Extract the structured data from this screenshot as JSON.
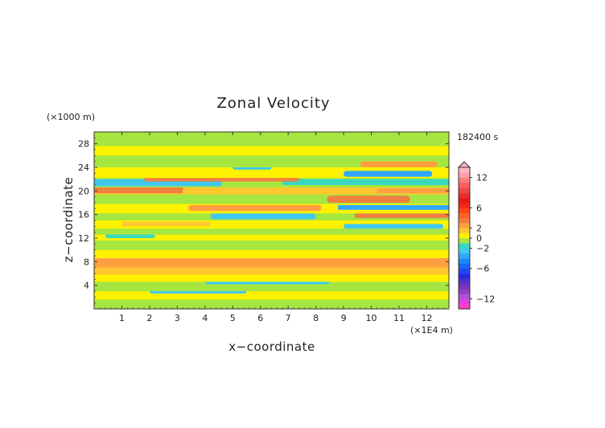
{
  "chart_data": {
    "type": "heatmap",
    "title": "Zonal Velocity",
    "xlabel": "x−coordinate",
    "ylabel": "z−coordinate",
    "x_unit": "(×1E4 m)",
    "y_unit": "(×1000 m)",
    "time_label": "182400 s",
    "xlim": [
      0,
      12.8
    ],
    "ylim": [
      0,
      30
    ],
    "x_ticks": [
      "1",
      "2",
      "3",
      "4",
      "5",
      "6",
      "7",
      "8",
      "9",
      "10",
      "11",
      "12"
    ],
    "y_ticks": [
      "4",
      "8",
      "12",
      "16",
      "20",
      "24",
      "28"
    ],
    "colorbar": {
      "range": [
        -14,
        14
      ],
      "tick_labels": [
        "12",
        "6",
        "2",
        "0",
        "−2",
        "−6",
        "−12"
      ],
      "tick_values": [
        12,
        6,
        2,
        0,
        -2,
        -6,
        -12
      ],
      "extend": "max",
      "levels": [
        {
          "from": -14,
          "to": -13,
          "color": "#ff40c8"
        },
        {
          "from": -13,
          "to": -12,
          "color": "#e040e0"
        },
        {
          "from": -12,
          "to": -11,
          "color": "#b050d8"
        },
        {
          "from": -11,
          "to": -10,
          "color": "#9040c0"
        },
        {
          "from": -10,
          "to": -9,
          "color": "#7a30b8"
        },
        {
          "from": -9,
          "to": -8,
          "color": "#5030c8"
        },
        {
          "from": -8,
          "to": -7,
          "color": "#2828e0"
        },
        {
          "from": -7,
          "to": -6,
          "color": "#2048f0"
        },
        {
          "from": -6,
          "to": -5,
          "color": "#1a66f5"
        },
        {
          "from": -5,
          "to": -4,
          "color": "#1e88ff"
        },
        {
          "from": -4,
          "to": -3,
          "color": "#30a8ff"
        },
        {
          "from": -3,
          "to": -2,
          "color": "#40c8f0"
        },
        {
          "from": -2,
          "to": -1,
          "color": "#38d8c0"
        },
        {
          "from": -1,
          "to": 0,
          "color": "#a6e640"
        },
        {
          "from": 0,
          "to": 1,
          "color": "#fff200"
        },
        {
          "from": 1,
          "to": 2,
          "color": "#ffc830"
        },
        {
          "from": 2,
          "to": 3,
          "color": "#ffa040"
        },
        {
          "from": 3,
          "to": 4,
          "color": "#f08040"
        },
        {
          "from": 4,
          "to": 5,
          "color": "#ff6020"
        },
        {
          "from": 5,
          "to": 6,
          "color": "#ff4418"
        },
        {
          "from": 6,
          "to": 7,
          "color": "#f02818"
        },
        {
          "from": 7,
          "to": 8,
          "color": "#e81a1a"
        },
        {
          "from": 8,
          "to": 9,
          "color": "#e83030"
        },
        {
          "from": 9,
          "to": 10,
          "color": "#f04848"
        },
        {
          "from": 10,
          "to": 11,
          "color": "#f86060"
        },
        {
          "from": 11,
          "to": 12,
          "color": "#fc7c80"
        },
        {
          "from": 12,
          "to": 13,
          "color": "#ffa0a8"
        },
        {
          "from": 13,
          "to": 14,
          "color": "#ffb8c0"
        }
      ]
    },
    "field_bands": [
      {
        "z": [
          0,
          1.6
        ],
        "x": [
          0,
          12.8
        ],
        "level": -1,
        "color": "#a6e640"
      },
      {
        "z": [
          1.6,
          3.0
        ],
        "x": [
          0,
          12.8
        ],
        "level": 0,
        "color": "#fff200"
      },
      {
        "z": [
          2.6,
          3.4
        ],
        "x": [
          2.0,
          5.5
        ],
        "level": -2,
        "color": "#40c8f0"
      },
      {
        "z": [
          3.0,
          4.6
        ],
        "x": [
          0,
          12.8
        ],
        "level": -1,
        "color": "#a6e640"
      },
      {
        "z": [
          4.2,
          5.2
        ],
        "x": [
          4.0,
          8.5
        ],
        "level": -2,
        "color": "#40c8f0"
      },
      {
        "z": [
          4.6,
          5.8
        ],
        "x": [
          0,
          12.8
        ],
        "level": 0,
        "color": "#fff200"
      },
      {
        "z": [
          5.8,
          7.0
        ],
        "x": [
          0,
          12.8
        ],
        "level": 1,
        "color": "#ffc830"
      },
      {
        "z": [
          7.0,
          8.6
        ],
        "x": [
          0,
          12.8
        ],
        "level": 2,
        "color": "#ffa040"
      },
      {
        "z": [
          8.6,
          10.0
        ],
        "x": [
          0,
          12.8
        ],
        "level": 0,
        "color": "#fff200"
      },
      {
        "z": [
          10.0,
          11.6
        ],
        "x": [
          0,
          12.8
        ],
        "level": -1,
        "color": "#a6e640"
      },
      {
        "z": [
          11.6,
          12.6
        ],
        "x": [
          0,
          12.8
        ],
        "level": 0,
        "color": "#fff200"
      },
      {
        "z": [
          12.0,
          12.8
        ],
        "x": [
          0.4,
          2.2
        ],
        "level": -2,
        "color": "#38d8c0"
      },
      {
        "z": [
          12.6,
          13.6
        ],
        "x": [
          0,
          12.8
        ],
        "level": -1,
        "color": "#a6e640"
      },
      {
        "z": [
          13.6,
          15.0
        ],
        "x": [
          0,
          12.8
        ],
        "level": 0,
        "color": "#fff200"
      },
      {
        "z": [
          14.0,
          14.8
        ],
        "x": [
          1.0,
          4.2
        ],
        "level": 1,
        "color": "#ffc830"
      },
      {
        "z": [
          13.6,
          14.4
        ],
        "x": [
          9.0,
          12.6
        ],
        "level": -2,
        "color": "#40c8f0"
      },
      {
        "z": [
          15.0,
          16.2
        ],
        "x": [
          0,
          12.8
        ],
        "level": -1,
        "color": "#a6e640"
      },
      {
        "z": [
          15.2,
          16.2
        ],
        "x": [
          4.2,
          8.0
        ],
        "level": -2,
        "color": "#40c8f0"
      },
      {
        "z": [
          15.4,
          16.4
        ],
        "x": [
          9.4,
          12.8
        ],
        "level": 3,
        "color": "#f08040"
      },
      {
        "z": [
          16.2,
          17.8
        ],
        "x": [
          0,
          12.8
        ],
        "level": 0,
        "color": "#fff200"
      },
      {
        "z": [
          16.6,
          17.6
        ],
        "x": [
          3.4,
          8.2
        ],
        "level": 2,
        "color": "#ffa040"
      },
      {
        "z": [
          16.8,
          17.6
        ],
        "x": [
          8.8,
          12.8
        ],
        "level": -3,
        "color": "#30a8ff"
      },
      {
        "z": [
          17.8,
          19.4
        ],
        "x": [
          0,
          12.8
        ],
        "level": -1,
        "color": "#a6e640"
      },
      {
        "z": [
          18.0,
          19.2
        ],
        "x": [
          8.4,
          11.4
        ],
        "level": 3,
        "color": "#f08040"
      },
      {
        "z": [
          19.4,
          20.6
        ],
        "x": [
          0,
          12.8
        ],
        "level": 1,
        "color": "#ffc830"
      },
      {
        "z": [
          19.6,
          20.6
        ],
        "x": [
          0,
          3.2
        ],
        "level": 3,
        "color": "#f08040"
      },
      {
        "z": [
          19.6,
          20.4
        ],
        "x": [
          10.2,
          12.8
        ],
        "level": 2,
        "color": "#ffa040"
      },
      {
        "z": [
          20.6,
          22.2
        ],
        "x": [
          0,
          12.8
        ],
        "level": -1,
        "color": "#a6e640"
      },
      {
        "z": [
          20.8,
          22.0
        ],
        "x": [
          0,
          4.6
        ],
        "level": -2,
        "color": "#40c8f0"
      },
      {
        "z": [
          21.0,
          22.0
        ],
        "x": [
          6.8,
          12.8
        ],
        "level": -2,
        "color": "#38d8c0"
      },
      {
        "z": [
          21.6,
          22.6
        ],
        "x": [
          1.8,
          7.4
        ],
        "level": 3,
        "color": "#f08040"
      },
      {
        "z": [
          22.2,
          24.0
        ],
        "x": [
          0,
          12.8
        ],
        "level": 0,
        "color": "#fff200"
      },
      {
        "z": [
          22.4,
          23.4
        ],
        "x": [
          9.0,
          12.2
        ],
        "level": -3,
        "color": "#30a8ff"
      },
      {
        "z": [
          23.6,
          24.4
        ],
        "x": [
          5.0,
          6.4
        ],
        "level": -2,
        "color": "#40c8f0"
      },
      {
        "z": [
          24.0,
          26.0
        ],
        "x": [
          0,
          12.8
        ],
        "level": -1,
        "color": "#a6e640"
      },
      {
        "z": [
          24.0,
          25.0
        ],
        "x": [
          9.6,
          12.4
        ],
        "level": 2,
        "color": "#ffa040"
      },
      {
        "z": [
          26.0,
          27.6
        ],
        "x": [
          0,
          12.8
        ],
        "level": 0,
        "color": "#fff200"
      },
      {
        "z": [
          27.6,
          30.0
        ],
        "x": [
          0,
          12.8
        ],
        "level": -1,
        "color": "#a6e640"
      }
    ]
  }
}
